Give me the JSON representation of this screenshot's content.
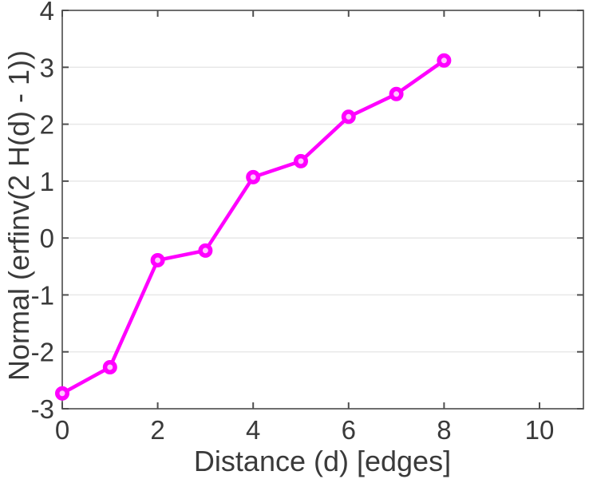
{
  "figure": {
    "background": "#ffffff"
  },
  "chart_data": {
    "type": "line",
    "title": "",
    "xlabel": "Distance (d) [edges]",
    "ylabel": "Normal (erfinv(2 H(d) - 1))",
    "x": [
      0,
      1,
      2,
      3,
      4,
      5,
      6,
      7,
      8
    ],
    "y": [
      -2.73,
      -2.27,
      -0.39,
      -0.22,
      1.07,
      1.35,
      2.13,
      2.53,
      3.12
    ],
    "xlim": [
      0,
      10.92
    ],
    "ylim": [
      -3,
      4
    ],
    "xticks": [
      0,
      2,
      4,
      6,
      8,
      10
    ],
    "xtick_labels": [
      "0",
      "2",
      "4",
      "6",
      "8",
      "10"
    ],
    "yticks": [
      -3,
      -2,
      -1,
      0,
      1,
      2,
      3,
      4
    ],
    "ytick_labels": [
      "-3",
      "-2",
      "-1",
      "0",
      "1",
      "2",
      "3",
      "4"
    ],
    "grid": "horizontal-only",
    "legend": "none",
    "box": "on",
    "ticks_direction": "in",
    "colors": {
      "line": "#ff00ff",
      "marker_edge": "#ff00ff",
      "marker_center": "#ffc4ff",
      "axis": "#555555",
      "tick": "#4f4f4f",
      "grid": "#e8e8e8",
      "text": "#3a3a3a",
      "background": "#ffffff"
    },
    "style": {
      "line_width": 4.5,
      "marker_radius": 6.25,
      "marker_stroke_width": 5.5,
      "tick_length": 8,
      "tick_font_size": 33,
      "label_font_size": 36
    }
  }
}
